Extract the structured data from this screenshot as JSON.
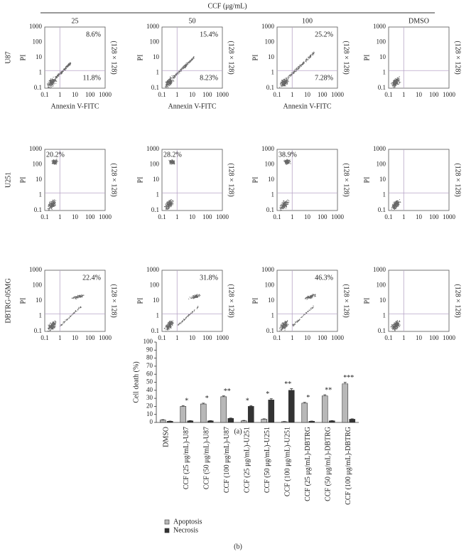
{
  "flow": {
    "title": "CCF (μg/mL)",
    "columns": [
      "25",
      "50",
      "100",
      "DMSO"
    ],
    "rows": [
      "U87",
      "U251",
      "DBTRG-05MG"
    ],
    "x_label": "Annexin V-FITC",
    "y_label": "PI",
    "resolution": "(128 × 128)",
    "tick_labels": [
      "0.1",
      "1",
      "10",
      "100",
      "1000"
    ],
    "panels": [
      [
        {
          "upper_right": "8.6%",
          "lower_right": "11.8%"
        },
        {
          "upper_right": "15.4%",
          "lower_right": "8.23%"
        },
        {
          "upper_right": "25.2%",
          "lower_right": "7.28%"
        },
        {}
      ],
      [
        {
          "upper_left": "20.2%"
        },
        {
          "upper_left": "28.2%"
        },
        {
          "upper_left": "38.9%"
        },
        {}
      ],
      [
        {
          "upper_right": "22.4%"
        },
        {
          "upper_right": "31.8%"
        },
        {
          "upper_right": "46.3%"
        },
        {}
      ]
    ],
    "caption": "(a)"
  },
  "chart_data": {
    "type": "bar",
    "y_label": "Cell death (%)",
    "categories": [
      "DMSO",
      "CCF (25 μg/mL)-U87",
      "CCF (50 μg/mL)-U87",
      "CCF (100 μg/mL)-U87",
      "CCF (25 μg/mL)-U251",
      "CCF (50 μg/mL)-U251",
      "CCF (100 μg/mL)-U251",
      "CCF (25 μg/mL)-DBTRG",
      "CCF (50 μg/mL)-DBTRG",
      "CCF (100 μg/mL)-DBTRG"
    ],
    "series": [
      {
        "name": "Apoptosis",
        "color": "#b8b8b8",
        "values": [
          3,
          20,
          23,
          32,
          2,
          4,
          1,
          24,
          33,
          48
        ],
        "errors": [
          0.5,
          1,
          1,
          1,
          0.5,
          0.5,
          0.3,
          1,
          1.5,
          2
        ]
      },
      {
        "name": "Necrosis",
        "color": "#333333",
        "values": [
          1.5,
          2,
          2,
          5,
          20,
          28,
          40,
          1.5,
          2,
          4
        ],
        "errors": [
          0.3,
          0.3,
          0.3,
          0.5,
          1,
          1.5,
          2,
          0.3,
          0.3,
          0.5
        ]
      }
    ],
    "annotations": [
      null,
      "*",
      "*",
      "**",
      "*",
      "*",
      "**",
      "*",
      "**",
      "***"
    ],
    "ylim": [
      0,
      100
    ],
    "yticks": [
      0,
      10,
      20,
      30,
      40,
      50,
      60,
      70,
      80,
      90,
      100
    ],
    "legend": "bottom-left",
    "caption": "(b)"
  }
}
